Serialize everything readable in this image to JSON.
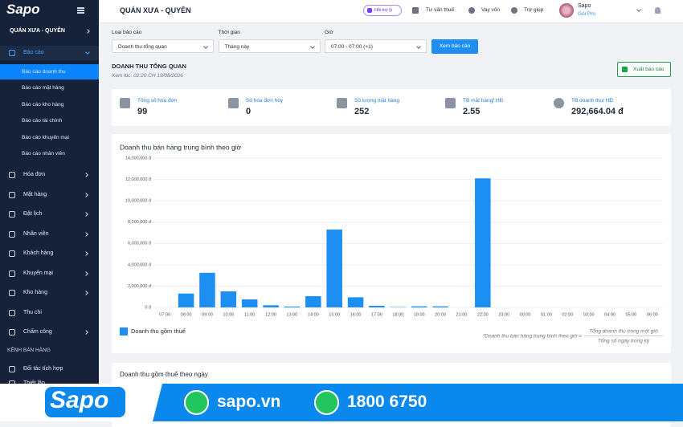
{
  "sidebar": {
    "logo": "Sapo",
    "store": "QUÁN XƯA - QUYÊN",
    "report_menu": "Báo cáo",
    "report_items": [
      "Báo cáo doanh thu",
      "Báo cáo mặt hàng",
      "Báo cáo kho hàng",
      "Báo cáo tài chính",
      "Báo cáo khuyến mại",
      "Báo cáo nhân viên"
    ],
    "menu": [
      "Hóa đơn",
      "Mặt hàng",
      "Đặt lịch",
      "Nhân viên",
      "Khách hàng",
      "Khuyến mại",
      "Kho hàng",
      "Thu chi",
      "Chấm công"
    ],
    "section": "KÊNH BÁN HÀNG",
    "section_items": [
      "Đối tác tích hợp",
      "Thiết lập"
    ]
  },
  "header": {
    "title": "QUÁN XƯA - QUYÊN",
    "assistant": "Hỏi trợ lý",
    "links": [
      "Tư vấn thuế",
      "Vay vốn",
      "Trợ giúp"
    ],
    "account": "Sapo",
    "plan": "Gói Pro"
  },
  "filters": [
    {
      "label": "Loại báo cáo",
      "value": "Doanh thu tổng quan"
    },
    {
      "label": "Thời gian",
      "value": "Tháng này"
    },
    {
      "label": "Giờ",
      "value": "07:00 - 07:00 (+1)"
    }
  ],
  "button": "Xem báo cáo",
  "report": {
    "title": "DOANH THU TỔNG QUAN",
    "viewed_at": "Xem lúc: 02:20 CH 19/08/2026",
    "export": "Xuất báo cáo"
  },
  "stats": [
    {
      "label": "Tổng số hóa đơn",
      "value": "99"
    },
    {
      "label": "Số hóa đơn hủy",
      "value": "0"
    },
    {
      "label": "Số lượng mặt hàng",
      "value": "252"
    },
    {
      "label": "TB mặt hàng/ HĐ",
      "value": "2.55"
    },
    {
      "label": "TB doanh thu/ HĐ",
      "value": "292,664.04 đ"
    }
  ],
  "chart_data": {
    "type": "bar",
    "title": "Doanh thu bán hàng trung bình theo giờ",
    "categories": [
      "07:00",
      "08:00",
      "09:00",
      "10:00",
      "11:00",
      "12:00",
      "13:00",
      "14:00",
      "15:00",
      "16:00",
      "17:00",
      "18:00",
      "19:00",
      "20:00",
      "21:00",
      "22:00",
      "23:00",
      "00:00",
      "01:00",
      "02:00",
      "03:00",
      "04:00",
      "05:00",
      "06:00"
    ],
    "series": [
      {
        "name": "Doanh thu gồm thuế",
        "color": "#1e8ff2",
        "values": [
          0,
          1300000,
          3250000,
          1500000,
          750000,
          200000,
          80000,
          1050000,
          7300000,
          950000,
          150000,
          30000,
          100000,
          100000,
          0,
          12100000,
          0,
          0,
          0,
          0,
          0,
          0,
          0,
          0
        ]
      }
    ],
    "ylim": [
      0,
      14000000
    ],
    "yticks": [
      {
        "value": 0,
        "label": "0 đ"
      },
      {
        "value": 2000000,
        "label": "2,000,000 đ"
      },
      {
        "value": 4000000,
        "label": "4,000,000 đ"
      },
      {
        "value": 6000000,
        "label": "6,000,000 đ"
      },
      {
        "value": 8000000,
        "label": "8,000,000 đ"
      },
      {
        "value": 10000000,
        "label": "10,000,000 đ"
      },
      {
        "value": 12000000,
        "label": "12,000,000 đ"
      },
      {
        "value": 14000000,
        "label": "14,000,000 đ"
      }
    ],
    "grid": true,
    "legend": "bottom-left",
    "formula": {
      "lhs": "*Doanh thu bán hàng trung bình theo giờ =",
      "numerator": "Tổng doanh thu trong một giờ",
      "denominator": "Tổng số ngày trong kỳ"
    }
  },
  "next_section": "Doanh thu gồm thuế theo ngày",
  "banner": {
    "brand": "Sapo",
    "website": "sapo.vn",
    "phone": "1800 6750"
  }
}
